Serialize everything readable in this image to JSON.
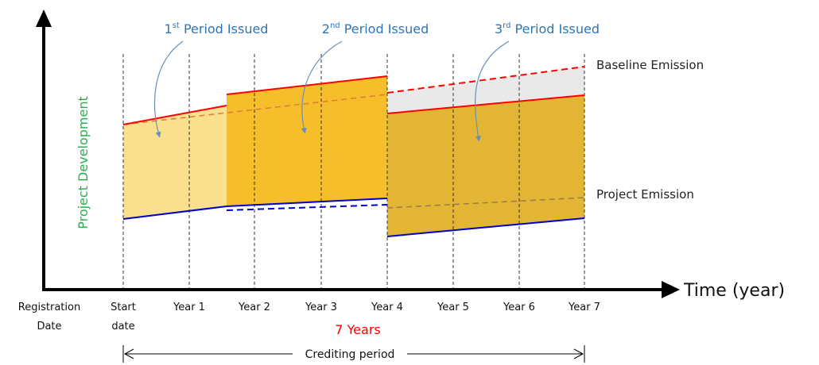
{
  "axis": {
    "x_title": "Time (year)",
    "y_title": "Project Development"
  },
  "x_ticks": {
    "registration": [
      "Registration",
      "Date"
    ],
    "start": [
      "Start",
      "date"
    ],
    "years": [
      "Year 1",
      "Year 2",
      "Year 3",
      "Year 4",
      "Year 5",
      "Year 6",
      "Year 7"
    ]
  },
  "periods": [
    {
      "ordinal": "1",
      "sup": "st",
      "text": " Period  Issued"
    },
    {
      "ordinal": "2",
      "sup": "nd",
      "text": " Period  Issued"
    },
    {
      "ordinal": "3",
      "sup": "rd",
      "text": " Period  Issued"
    }
  ],
  "series_labels": {
    "baseline": "Baseline Emission",
    "project": "Project Emission"
  },
  "duration_label": "7 Years",
  "crediting_label": "Crediting period",
  "colors": {
    "period1_fill": "#FADF8E",
    "period2_fill": "#F6BE2A",
    "period3_fill": "#E3B535",
    "reduction_gap": "#E9E9E9",
    "baseline_line": "#FF0000",
    "project_line": "#0000CC",
    "projection_dash": "#E07B39",
    "y_title": "#22B04B",
    "period_text": "#2E75B6",
    "duration_text": "#FF0000"
  }
}
